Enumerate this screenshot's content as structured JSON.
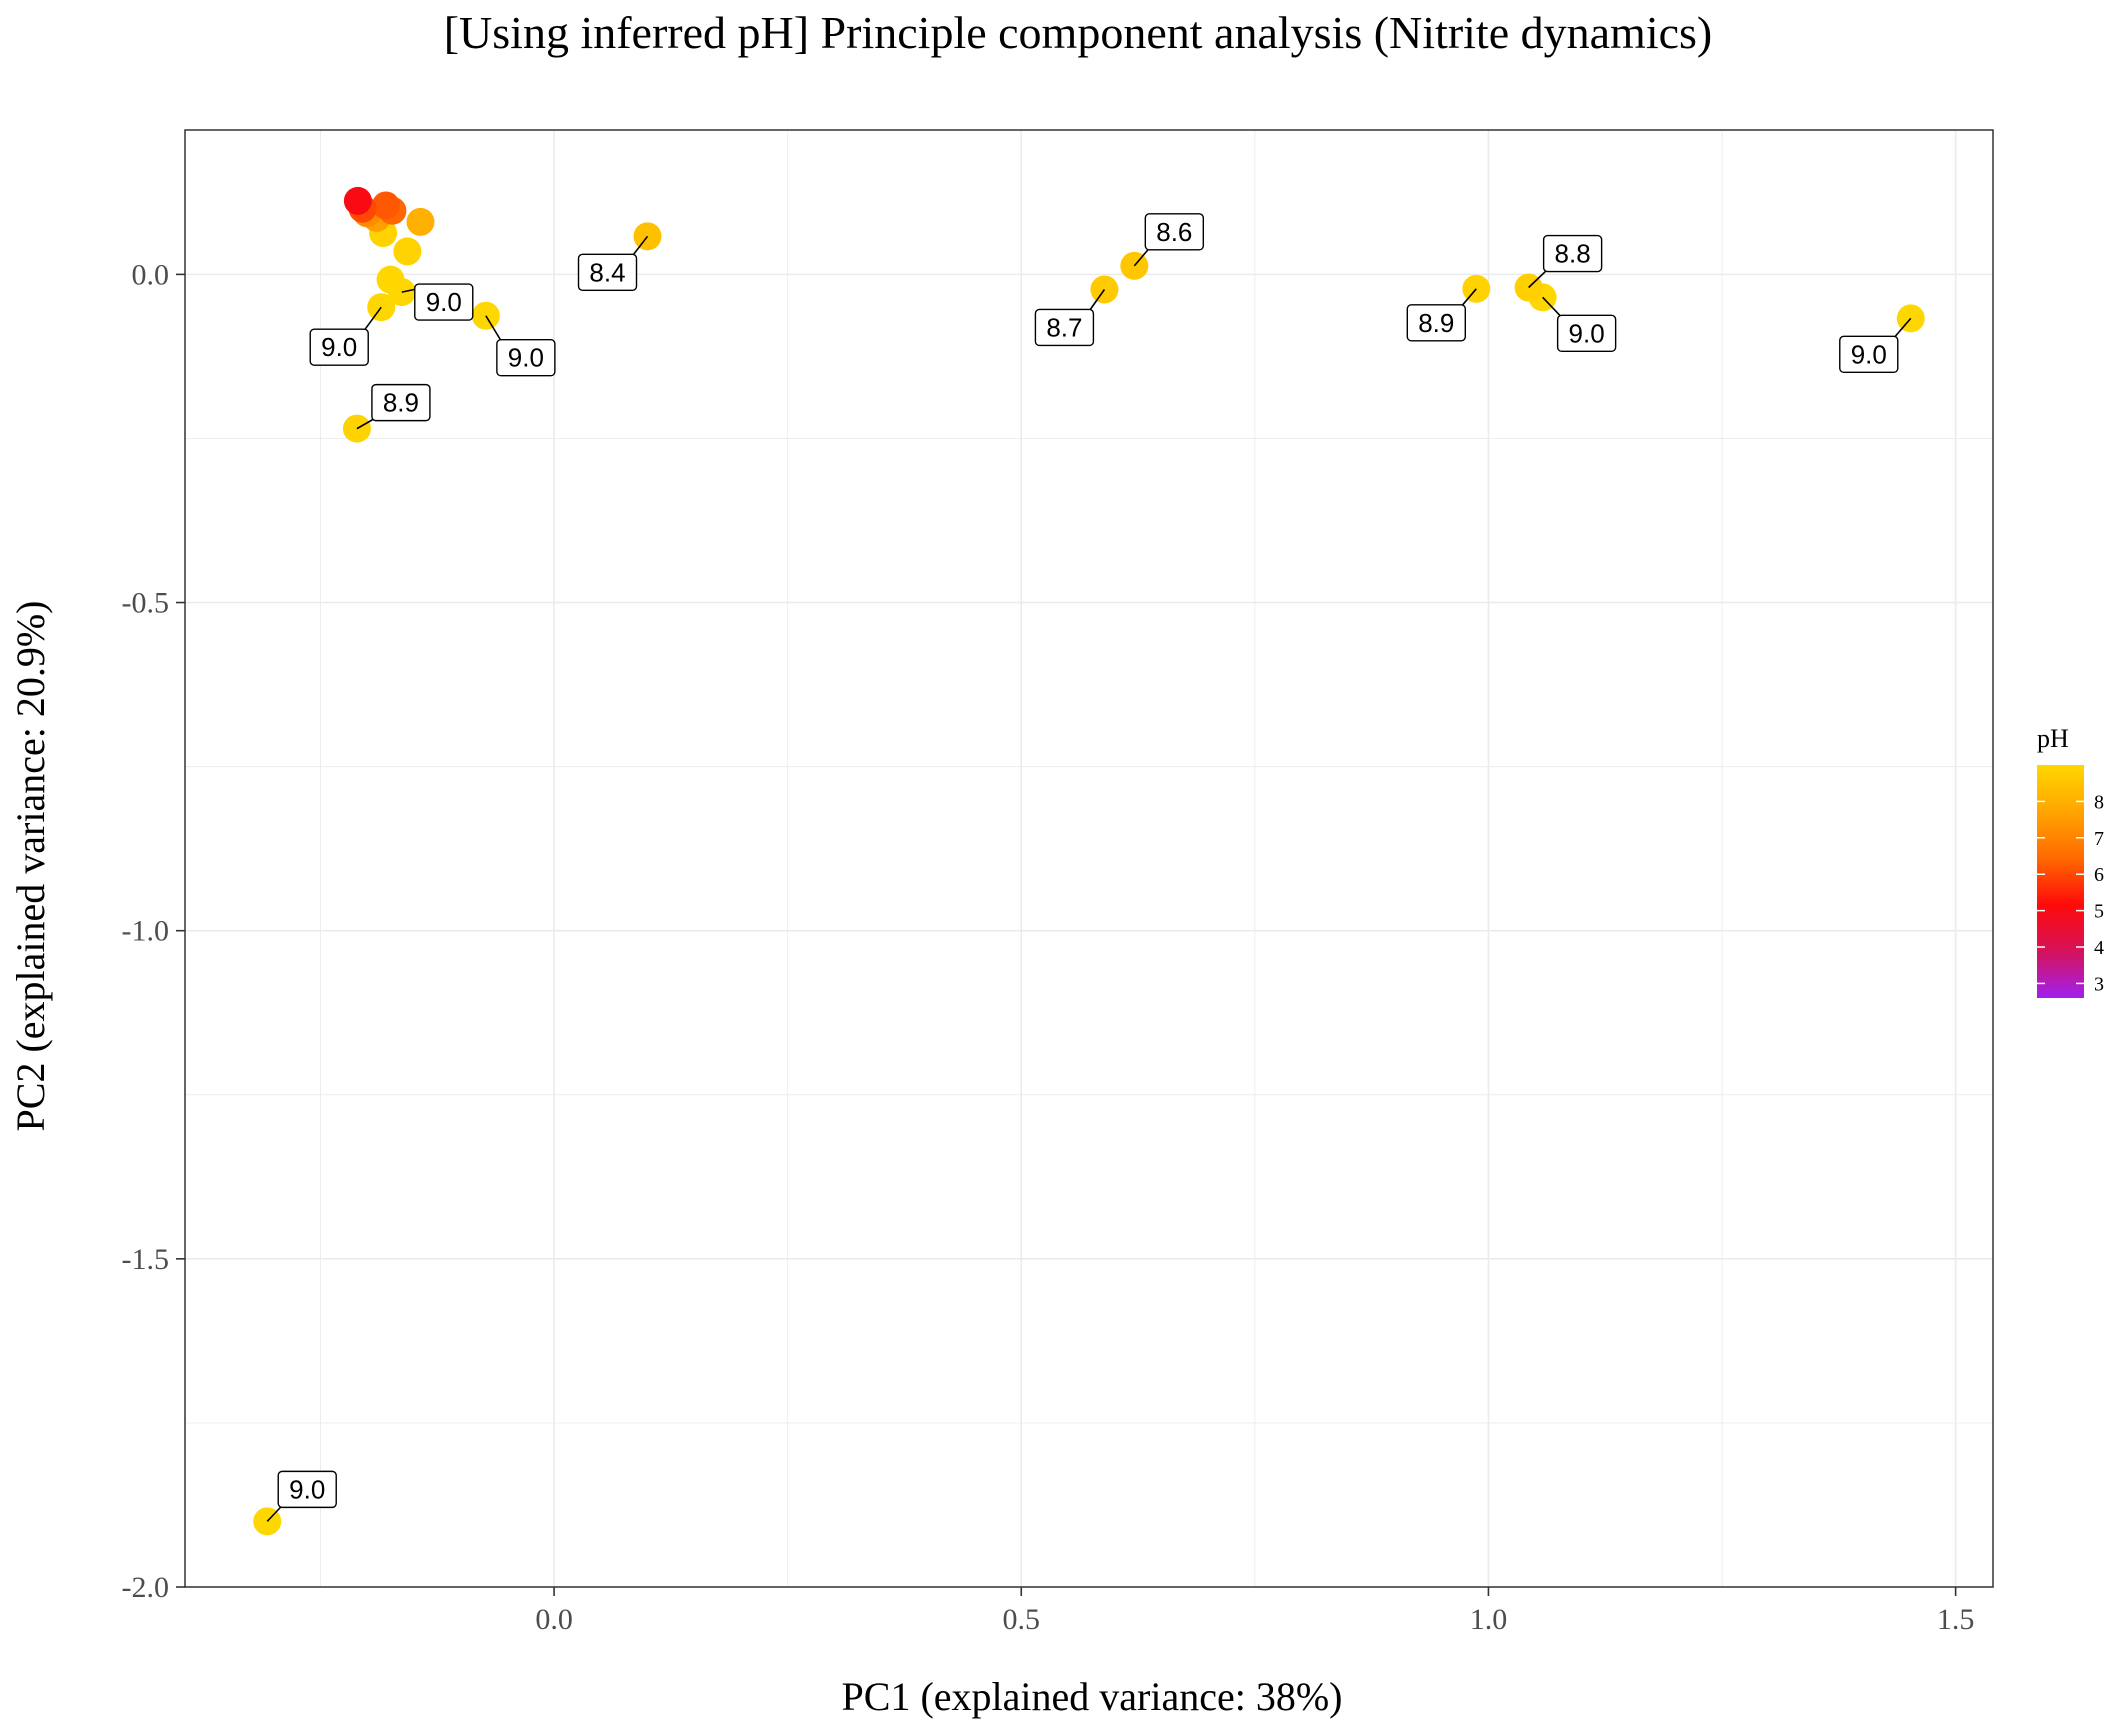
{
  "chart_data": {
    "type": "scatter",
    "title": "[Using inferred pH] Principle component analysis (Nitrite dynamics)",
    "xlabel": "PC1 (explained variance: 38%)",
    "ylabel": "PC2 (explained variance: 20.9%)",
    "xlim": [
      -0.395,
      1.54
    ],
    "ylim": [
      -2.0,
      0.22
    ],
    "x_ticks": [
      0.0,
      0.5,
      1.0,
      1.5
    ],
    "x_tick_labels": [
      "0.0",
      "0.5",
      "1.0",
      "1.5"
    ],
    "y_ticks": [
      0.0,
      -0.5,
      -1.0,
      -1.5,
      -2.0
    ],
    "y_tick_labels": [
      "0.0",
      "-0.5",
      "-1.0",
      "-1.5",
      "-2.0"
    ],
    "grid": true,
    "legend": {
      "title": "pH",
      "position": "right",
      "ticks": [
        3,
        4,
        5,
        6,
        7,
        8
      ],
      "tick_labels": [
        "3",
        "4",
        "5",
        "6",
        "7",
        "8"
      ],
      "range": [
        2.6,
        9.0
      ],
      "colors": [
        "#a020f0",
        "#d6125a",
        "#ff0a0a",
        "#ff6a00",
        "#ffa500",
        "#ffd700"
      ]
    },
    "points": [
      {
        "x": -0.21,
        "y": 0.112,
        "ph": 5.0,
        "label": ""
      },
      {
        "x": -0.205,
        "y": 0.1,
        "ph": 6.0,
        "label": ""
      },
      {
        "x": -0.18,
        "y": 0.105,
        "ph": 6.2,
        "label": ""
      },
      {
        "x": -0.173,
        "y": 0.097,
        "ph": 6.4,
        "label": ""
      },
      {
        "x": -0.2,
        "y": 0.093,
        "ph": 7.2,
        "label": ""
      },
      {
        "x": -0.19,
        "y": 0.086,
        "ph": 7.6,
        "label": ""
      },
      {
        "x": -0.143,
        "y": 0.08,
        "ph": 8.0,
        "label": ""
      },
      {
        "x": -0.183,
        "y": 0.063,
        "ph": 8.9,
        "label": ""
      },
      {
        "x": -0.157,
        "y": 0.035,
        "ph": 8.9,
        "label": ""
      },
      {
        "x": -0.175,
        "y": -0.008,
        "ph": 9.0,
        "label": ""
      },
      {
        "x": -0.163,
        "y": -0.027,
        "ph": 9.0,
        "label": "9.0"
      },
      {
        "x": -0.185,
        "y": -0.05,
        "ph": 9.0,
        "label": "9.0"
      },
      {
        "x": -0.073,
        "y": -0.063,
        "ph": 9.0,
        "label": "9.0"
      },
      {
        "x": -0.211,
        "y": -0.235,
        "ph": 8.9,
        "label": "8.9"
      },
      {
        "x": 0.1,
        "y": 0.058,
        "ph": 8.4,
        "label": "8.4"
      },
      {
        "x": 0.589,
        "y": -0.023,
        "ph": 8.7,
        "label": "8.7"
      },
      {
        "x": 0.621,
        "y": 0.013,
        "ph": 8.6,
        "label": "8.6"
      },
      {
        "x": 0.987,
        "y": -0.022,
        "ph": 8.9,
        "label": "8.9"
      },
      {
        "x": 1.043,
        "y": -0.02,
        "ph": 8.8,
        "label": "8.8"
      },
      {
        "x": 1.058,
        "y": -0.035,
        "ph": 9.0,
        "label": "9.0"
      },
      {
        "x": 1.452,
        "y": -0.067,
        "ph": 9.0,
        "label": "9.0"
      },
      {
        "x": -0.307,
        "y": -1.9,
        "ph": 9.0,
        "label": "9.0"
      }
    ]
  }
}
